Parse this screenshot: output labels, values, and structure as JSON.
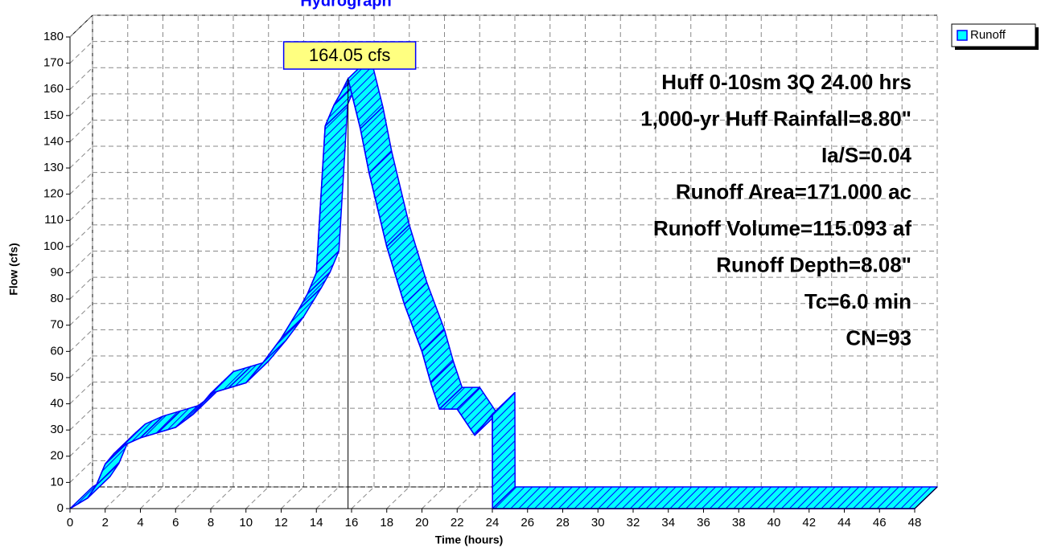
{
  "chart_data": {
    "type": "area3d",
    "title": "Hydrograph",
    "x_label": "Time  (hours)",
    "y_label": "Flow  (cfs)",
    "xlim": [
      0,
      48
    ],
    "ylim": [
      0,
      180
    ],
    "xticks": [
      0,
      2,
      4,
      6,
      8,
      10,
      12,
      14,
      16,
      18,
      20,
      22,
      24,
      26,
      28,
      30,
      32,
      34,
      36,
      38,
      40,
      42,
      44,
      46,
      48
    ],
    "yticks": [
      0,
      10,
      20,
      30,
      40,
      50,
      60,
      70,
      80,
      90,
      100,
      110,
      120,
      130,
      140,
      150,
      160,
      170,
      180
    ],
    "grid": true,
    "legend": "top-right",
    "series": [
      {
        "name": "Runoff",
        "color": "#00ffff",
        "edge_color": "#0000ff",
        "x": [
          0,
          1,
          1.5,
          2,
          2.5,
          3,
          4,
          5,
          6,
          7,
          7.5,
          8,
          9,
          10,
          11,
          12,
          13,
          13.5,
          14,
          14.5,
          15,
          15.5,
          15.8,
          16.5,
          17,
          18,
          19,
          20,
          20.5,
          21,
          22,
          23,
          24,
          24.01,
          48
        ],
        "values": [
          0,
          4,
          9,
          17,
          21,
          24,
          27,
          29,
          31,
          36,
          40,
          44,
          46,
          48,
          56,
          65,
          76,
          82,
          90,
          146,
          154,
          160,
          164.05,
          145,
          128,
          100,
          78,
          60,
          48,
          38,
          38,
          28,
          36,
          0,
          0
        ]
      }
    ],
    "peak_label": "164.05 cfs",
    "annotations": [
      "Huff 0-10sm 3Q 24.00 hrs",
      "1,000-yr Huff Rainfall=8.80\"",
      "Ia/S=0.04",
      "Runoff Area=171.000 ac",
      "Runoff Volume=115.093 af",
      "Runoff Depth=8.08\"",
      "Tc=6.0 min",
      "CN=93"
    ]
  }
}
